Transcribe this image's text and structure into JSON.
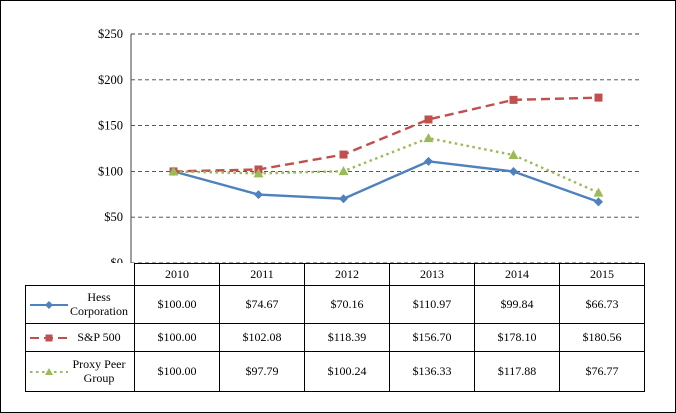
{
  "chart_data": {
    "type": "line",
    "categories": [
      "2010",
      "2011",
      "2012",
      "2013",
      "2014",
      "2015"
    ],
    "series": [
      {
        "name": "Hess Corporation",
        "values": [
          100.0,
          74.67,
          70.16,
          110.97,
          99.84,
          66.73
        ],
        "color": "#4F81BD",
        "dash": "solid",
        "marker": "diamond"
      },
      {
        "name": "S&P 500",
        "values": [
          100.0,
          102.08,
          118.39,
          156.7,
          178.1,
          180.56
        ],
        "color": "#C0504D",
        "dash": "dashed",
        "marker": "square"
      },
      {
        "name": "Proxy Peer Group",
        "values": [
          100.0,
          97.79,
          100.24,
          136.33,
          117.88,
          76.77
        ],
        "color": "#9BBB59",
        "dash": "dotted",
        "marker": "triangle"
      }
    ],
    "title": "",
    "xlabel": "",
    "ylabel": "",
    "ylim": [
      0,
      250
    ],
    "ytick_step": 50,
    "ytick_labels": [
      "$0",
      "$50",
      "$100",
      "$150",
      "$200",
      "$250"
    ],
    "grid": true,
    "grid_color": "#404040",
    "axis_color": "#404040",
    "legend_position": "table-left"
  },
  "table": {
    "columns": [
      "2010",
      "2011",
      "2012",
      "2013",
      "2014",
      "2015"
    ],
    "rows": [
      {
        "label": "Hess Corporation",
        "values": [
          "$100.00",
          "$74.67",
          "$70.16",
          "$110.97",
          "$99.84",
          "$66.73"
        ]
      },
      {
        "label": "S&P 500",
        "values": [
          "$100.00",
          "$102.08",
          "$118.39",
          "$156.70",
          "$178.10",
          "$180.56"
        ]
      },
      {
        "label": "Proxy Peer Group",
        "values": [
          "$100.00",
          "$97.79",
          "$100.24",
          "$136.33",
          "$117.88",
          "$76.77"
        ]
      }
    ]
  }
}
